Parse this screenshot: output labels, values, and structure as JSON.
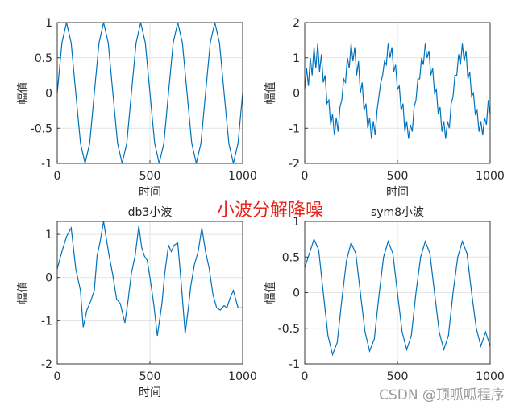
{
  "figure": {
    "suptitle": "小波分解降噪",
    "watermark": "CSDN @顶呱呱程序",
    "colors": {
      "line": "#0072bd",
      "axis": "#262626",
      "grid": "#dcdcdc",
      "suptitle": "#e8241c"
    }
  },
  "chart_data": [
    {
      "type": "line",
      "title": "",
      "xlabel": "时间",
      "ylabel": "幅值",
      "xlim": [
        0,
        1000
      ],
      "ylim": [
        -1,
        1
      ],
      "xticks": [
        "0",
        "500",
        "1000"
      ],
      "yticks": [
        "1",
        "0.5",
        "0",
        "-0.5",
        "-1"
      ],
      "grid": true,
      "series": [
        {
          "x": [
            0,
            25,
            50,
            75,
            100,
            125,
            150,
            175,
            200,
            225,
            250,
            275,
            300,
            325,
            350,
            375,
            400,
            425,
            450,
            475,
            500,
            525,
            550,
            575,
            600,
            625,
            650,
            675,
            700,
            725,
            750,
            775,
            800,
            825,
            850,
            875,
            900,
            925,
            950,
            975,
            1000
          ],
          "values": [
            0,
            0.71,
            1,
            0.71,
            0,
            -0.71,
            -1,
            -0.71,
            0,
            0.71,
            1,
            0.71,
            0,
            -0.71,
            -1,
            -0.71,
            0,
            0.71,
            1,
            0.71,
            0,
            -0.71,
            -1,
            -0.71,
            0,
            0.71,
            1,
            0.71,
            0,
            -0.71,
            -1,
            -0.71,
            0,
            0.71,
            1,
            0.71,
            0,
            -0.71,
            -1,
            -0.71,
            0
          ]
        }
      ]
    },
    {
      "type": "line",
      "title": "",
      "xlabel": "时间",
      "ylabel": "幅值",
      "xlim": [
        0,
        1000
      ],
      "ylim": [
        -2,
        2
      ],
      "xticks": [
        "0",
        "500",
        "1000"
      ],
      "yticks": [
        "2",
        "1",
        "0",
        "-1",
        "-2"
      ],
      "grid": true,
      "series": [
        {
          "x": [
            0,
            10,
            20,
            30,
            40,
            50,
            60,
            70,
            80,
            90,
            100,
            110,
            120,
            130,
            140,
            150,
            160,
            170,
            180,
            190,
            200,
            210,
            220,
            230,
            240,
            250,
            260,
            270,
            280,
            290,
            300,
            310,
            320,
            330,
            340,
            350,
            360,
            370,
            380,
            390,
            400,
            410,
            420,
            430,
            440,
            450,
            460,
            470,
            480,
            490,
            500,
            510,
            520,
            530,
            540,
            550,
            560,
            570,
            580,
            590,
            600,
            610,
            620,
            630,
            640,
            650,
            660,
            670,
            680,
            690,
            700,
            710,
            720,
            730,
            740,
            750,
            760,
            770,
            780,
            790,
            800,
            810,
            820,
            830,
            840,
            850,
            860,
            870,
            880,
            890,
            900,
            910,
            920,
            930,
            940,
            950,
            960,
            970,
            980,
            990,
            1000
          ],
          "values": [
            0.1,
            0.7,
            0.2,
            1.0,
            0.5,
            1.3,
            0.7,
            1.4,
            0.6,
            1.1,
            0.3,
            0.5,
            -0.3,
            -0.2,
            -0.9,
            -0.6,
            -1.2,
            -0.7,
            -1.1,
            -0.4,
            -0.2,
            0.4,
            0.3,
            1.0,
            0.7,
            1.4,
            0.9,
            1.3,
            0.5,
            0.9,
            0.0,
            0.3,
            -0.5,
            -0.3,
            -1.0,
            -0.7,
            -1.3,
            -0.8,
            -1.2,
            -0.5,
            -0.1,
            0.3,
            0.5,
            0.9,
            0.8,
            1.4,
            1.0,
            1.3,
            0.6,
            0.8,
            0.1,
            0.2,
            -0.5,
            -0.3,
            -1.1,
            -0.8,
            -1.3,
            -0.9,
            -1.1,
            -0.4,
            -0.2,
            0.4,
            0.4,
            1.0,
            0.8,
            1.4,
            1.0,
            1.2,
            0.5,
            0.7,
            0.0,
            0.1,
            -0.6,
            -0.4,
            -1.1,
            -0.8,
            -1.3,
            -0.8,
            -1.0,
            -0.3,
            -0.1,
            0.5,
            0.5,
            1.1,
            0.8,
            1.4,
            0.9,
            1.2,
            0.4,
            0.6,
            -0.1,
            0.0,
            -0.6,
            -0.5,
            -1.1,
            -0.8,
            -1.2,
            -0.7,
            -0.9,
            -0.2,
            -0.6
          ]
        }
      ]
    },
    {
      "type": "line",
      "title": "db3小波",
      "xlabel": "时间",
      "ylabel": "幅值",
      "xlim": [
        0,
        1000
      ],
      "ylim": [
        -2,
        1.3
      ],
      "xticks": [
        "0",
        "500",
        "1000"
      ],
      "yticks": [
        "1",
        "0",
        "-1",
        "-2"
      ],
      "grid": true,
      "series": [
        {
          "x": [
            0,
            25,
            50,
            75,
            100,
            125,
            140,
            160,
            180,
            200,
            215,
            230,
            250,
            265,
            280,
            300,
            320,
            340,
            365,
            380,
            400,
            420,
            440,
            455,
            470,
            485,
            500,
            520,
            540,
            565,
            580,
            600,
            615,
            630,
            650,
            670,
            690,
            710,
            720,
            740,
            760,
            780,
            800,
            820,
            840,
            860,
            880,
            900,
            915,
            930,
            950,
            975,
            1000
          ],
          "values": [
            0.2,
            0.6,
            0.95,
            1.15,
            0.2,
            -0.3,
            -1.15,
            -0.75,
            -0.55,
            -0.3,
            0.5,
            0.8,
            1.3,
            0.9,
            0.5,
            0.05,
            -0.5,
            -0.6,
            -1.05,
            -0.6,
            0.1,
            0.5,
            1.2,
            0.7,
            0.5,
            0.4,
            0.0,
            -0.6,
            -1.35,
            -0.6,
            0.1,
            0.75,
            0.6,
            0.75,
            0.8,
            -0.2,
            -1.3,
            -0.6,
            -0.2,
            0.3,
            0.6,
            1.15,
            0.6,
            0.2,
            -0.4,
            -0.7,
            -0.75,
            -0.65,
            -0.7,
            -0.5,
            -0.3,
            -0.7,
            -0.7
          ]
        }
      ]
    },
    {
      "type": "line",
      "title": "sym8小波",
      "xlabel": "",
      "ylabel": "幅值",
      "xlim": [
        0,
        1000
      ],
      "ylim": [
        -1,
        1
      ],
      "xticks": [
        "0",
        "500",
        "1000"
      ],
      "yticks": [
        "1",
        "0.5",
        "0",
        "-0.5",
        "-1"
      ],
      "grid": true,
      "series": [
        {
          "x": [
            0,
            25,
            50,
            75,
            100,
            125,
            150,
            175,
            200,
            225,
            250,
            275,
            300,
            325,
            350,
            375,
            400,
            425,
            450,
            475,
            500,
            525,
            550,
            575,
            600,
            625,
            650,
            675,
            700,
            725,
            750,
            775,
            800,
            825,
            850,
            875,
            900,
            925,
            950,
            975,
            1000
          ],
          "values": [
            0.35,
            0.55,
            0.75,
            0.6,
            0.0,
            -0.6,
            -0.87,
            -0.7,
            -0.1,
            0.45,
            0.7,
            0.55,
            0.0,
            -0.55,
            -0.82,
            -0.65,
            -0.05,
            0.5,
            0.72,
            0.55,
            0.0,
            -0.55,
            -0.8,
            -0.6,
            0.0,
            0.5,
            0.72,
            0.55,
            0.0,
            -0.55,
            -0.8,
            -0.6,
            0.0,
            0.5,
            0.72,
            0.55,
            0.0,
            -0.5,
            -0.75,
            -0.55,
            -0.75
          ]
        }
      ]
    }
  ]
}
